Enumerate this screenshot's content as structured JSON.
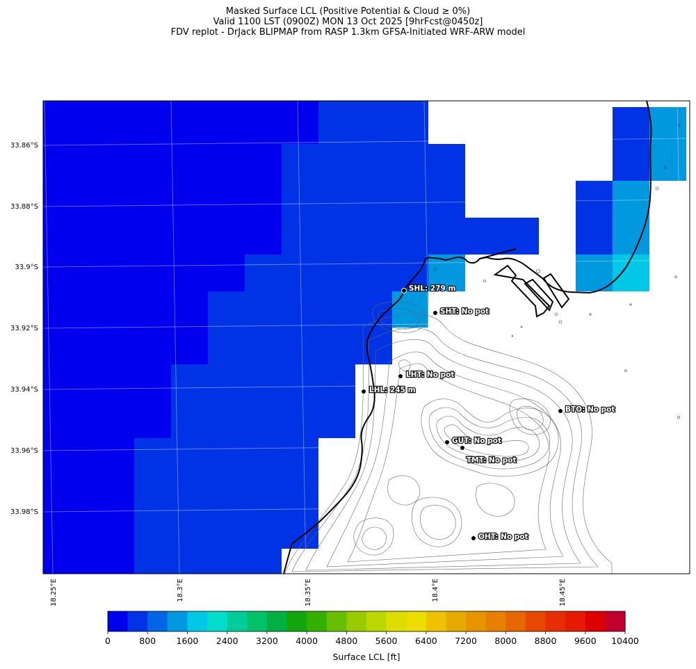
{
  "header": {
    "title_line1": "Masked Surface LCL (Positive Potential & Cloud ≥ 0%)",
    "title_line2": "Valid 1100 LST (0900Z) MON 13 Oct 2025 [9hrFcst@0450z]",
    "title_line3": "FDV replot - DrJack BLIPMAP from RASP 1.3km GFSA-Initiated WRF-ARW model"
  },
  "map": {
    "lon_labels": [
      "18.25°E",
      "18.3°E",
      "18.35°E",
      "18.4°E",
      "18.45°E"
    ],
    "lat_labels": [
      "33.86°S",
      "33.88°S",
      "33.9°S",
      "33.92°S",
      "33.94°S",
      "33.96°S",
      "33.98°S"
    ],
    "stations": [
      {
        "code": "SHL",
        "label": "SHL: 279 m"
      },
      {
        "code": "SHT",
        "label": "SHT: No pot"
      },
      {
        "code": "LHT",
        "label": "LHT: No pot"
      },
      {
        "code": "LHL",
        "label": "LHL: 245 m"
      },
      {
        "code": "BTO",
        "label": "BTO: No pot"
      },
      {
        "code": "GUT",
        "label": "GUT: No pot"
      },
      {
        "code": "TMT",
        "label": "TMT: No pot"
      },
      {
        "code": "OHT",
        "label": "OHT: No pot"
      }
    ]
  },
  "colorbar": {
    "label": "Surface LCL [ft]",
    "tick_labels": [
      "0",
      "800",
      "1600",
      "2400",
      "3200",
      "4000",
      "4800",
      "5600",
      "6400",
      "7200",
      "8000",
      "8800",
      "9600",
      "10400"
    ],
    "colors": [
      "#0000ee",
      "#0033e6",
      "#0066e6",
      "#0099e0",
      "#00c8e6",
      "#00ddcc",
      "#00cc99",
      "#00c266",
      "#00b040",
      "#11a60a",
      "#33b000",
      "#66be00",
      "#99cc00",
      "#bbd800",
      "#dddd00",
      "#eedd00",
      "#eec200",
      "#e6aa00",
      "#e69500",
      "#e68000",
      "#e66600",
      "#e64800",
      "#e62e00",
      "#e61a00",
      "#dd0000",
      "#c0002a"
    ]
  },
  "cell_colors": {
    "c400": "#0000ee",
    "c800": "#0033e6",
    "c1200": "#0066e6",
    "c1600": "#0099e0",
    "c2000": "#00c8e6"
  }
}
